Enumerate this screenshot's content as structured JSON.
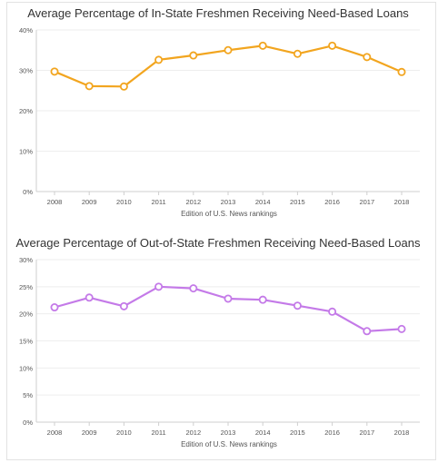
{
  "colors": {
    "chart1": "#f2a51f",
    "chart2": "#c47ae8"
  },
  "chart_data": [
    {
      "type": "line",
      "title": "Average Percentage of In-State Freshmen Receiving Need-Based Loans",
      "xlabel": "Edition of U.S. News rankings",
      "ylabel": "",
      "categories": [
        "2008",
        "2009",
        "2010",
        "2011",
        "2012",
        "2013",
        "2014",
        "2015",
        "2016",
        "2017",
        "2018"
      ],
      "values": [
        29.7,
        26.1,
        26.0,
        32.6,
        33.7,
        35.0,
        36.1,
        34.1,
        36.1,
        33.3,
        29.6
      ],
      "ylim": [
        0,
        40
      ],
      "yticks": [
        "0%",
        "10%",
        "20%",
        "30%",
        "40%"
      ],
      "grid": true
    },
    {
      "type": "line",
      "title": "Average Percentage of Out-of-State Freshmen Receiving Need-Based Loans",
      "xlabel": "Edition of U.S. News rankings",
      "ylabel": "",
      "categories": [
        "2008",
        "2009",
        "2010",
        "2011",
        "2012",
        "2013",
        "2014",
        "2015",
        "2016",
        "2017",
        "2018"
      ],
      "values": [
        21.2,
        23.0,
        21.4,
        25.0,
        24.7,
        22.8,
        22.6,
        21.5,
        20.4,
        16.8,
        17.2
      ],
      "ylim": [
        0,
        30
      ],
      "yticks": [
        "0%",
        "5%",
        "10%",
        "15%",
        "20%",
        "25%",
        "30%"
      ],
      "grid": true
    }
  ]
}
